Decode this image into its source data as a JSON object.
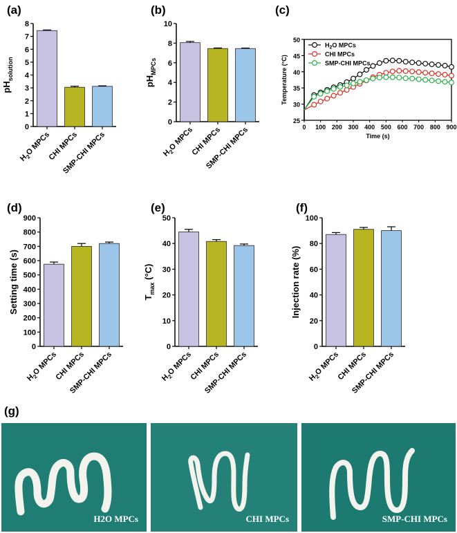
{
  "chart_data": [
    {
      "panel": "(a)",
      "type": "bar",
      "categories": [
        "H2O MPCs",
        "CHI MPCs",
        "SMP-CHI MPCs"
      ],
      "values": [
        7.45,
        3.05,
        3.12
      ],
      "errors": [
        0.05,
        0.08,
        0.04
      ],
      "ylabel": "pH",
      "ylabel_sub": "solution",
      "ylim": [
        0,
        8
      ],
      "yticks": [
        0,
        1,
        2,
        3,
        4,
        5,
        6,
        7,
        8
      ],
      "colors": [
        "#c8c2e2",
        "#b7b522",
        "#9cc5ea"
      ]
    },
    {
      "panel": "(b)",
      "type": "bar",
      "categories": [
        "H2O MPCs",
        "CHI MPCs",
        "SMP-CHI MPCs"
      ],
      "values": [
        8.05,
        7.45,
        7.45
      ],
      "errors": [
        0.12,
        0.06,
        0.05
      ],
      "ylabel": "pH",
      "ylabel_sub": "MPCs",
      "ylim": [
        0,
        10
      ],
      "yticks": [
        0,
        2,
        4,
        6,
        8,
        10
      ],
      "colors": [
        "#c8c2e2",
        "#b7b522",
        "#9cc5ea"
      ]
    },
    {
      "panel": "(c)",
      "type": "line",
      "xlabel": "Time (s)",
      "ylabel": "Temperature (°C)",
      "xlim": [
        0,
        900
      ],
      "ylim": [
        25,
        50
      ],
      "xticks": [
        0,
        100,
        200,
        300,
        400,
        500,
        600,
        700,
        800,
        900
      ],
      "yticks": [
        25,
        30,
        35,
        40,
        45,
        50
      ],
      "legend": "top-left",
      "series": [
        {
          "name": "H2O MPCs",
          "color": "#111111",
          "x": [
            0,
            60,
            100,
            140,
            180,
            220,
            260,
            300,
            340,
            380,
            420,
            460,
            500,
            540,
            580,
            620,
            660,
            700,
            740,
            780,
            820,
            860,
            900
          ],
          "y": [
            28.2,
            32.8,
            33.6,
            34.4,
            35.2,
            35.9,
            36.8,
            37.9,
            39.2,
            40.6,
            41.8,
            42.7,
            43.4,
            43.5,
            43.4,
            43.1,
            42.9,
            42.7,
            42.5,
            42.3,
            42.1,
            41.9,
            41.5
          ]
        },
        {
          "name": "CHI MPCs",
          "color": "#d93025",
          "x": [
            0,
            60,
            100,
            140,
            180,
            220,
            260,
            300,
            340,
            380,
            420,
            460,
            500,
            540,
            580,
            620,
            660,
            700,
            740,
            780,
            820,
            860,
            900
          ],
          "y": [
            28.2,
            29.8,
            30.8,
            31.7,
            32.6,
            33.5,
            34.4,
            35.3,
            36.3,
            37.3,
            38.3,
            39.1,
            39.7,
            40.1,
            40.3,
            40.2,
            40.1,
            39.9,
            39.7,
            39.5,
            39.3,
            39.1,
            38.8
          ]
        },
        {
          "name": "SMP-CHI MPCs",
          "color": "#2bb34a",
          "x": [
            0,
            60,
            100,
            140,
            180,
            220,
            260,
            300,
            340,
            380,
            420,
            460,
            500,
            540,
            580,
            620,
            660,
            700,
            740,
            780,
            820,
            860,
            900
          ],
          "y": [
            28.2,
            32.3,
            33.2,
            34.0,
            34.7,
            35.3,
            35.8,
            36.4,
            36.9,
            37.4,
            37.9,
            38.2,
            38.3,
            38.3,
            38.2,
            38.0,
            37.9,
            37.7,
            37.5,
            37.3,
            37.1,
            36.9,
            36.7
          ]
        }
      ]
    },
    {
      "panel": "(d)",
      "type": "bar",
      "categories": [
        "H2O MPCs",
        "CHI MPCs",
        "SMP-CHI MPCs"
      ],
      "values": [
        575,
        700,
        720
      ],
      "errors": [
        15,
        20,
        10
      ],
      "ylabel": "Setting time (s)",
      "ylim": [
        0,
        900
      ],
      "yticks": [
        0,
        100,
        200,
        300,
        400,
        500,
        600,
        700,
        800,
        900
      ],
      "colors": [
        "#c8c2e2",
        "#b7b522",
        "#9cc5ea"
      ]
    },
    {
      "panel": "(e)",
      "type": "bar",
      "categories": [
        "H2O MPCs",
        "CHI MPCs",
        "SMP-CHI MPCs"
      ],
      "values": [
        44.5,
        40.8,
        39.2
      ],
      "errors": [
        1.0,
        0.7,
        0.6
      ],
      "ylabel": "T",
      "ylabel_sub": "max",
      "ylabel_suffix": " (°C)",
      "ylim": [
        0,
        50
      ],
      "yticks": [
        0,
        10,
        20,
        30,
        40,
        50
      ],
      "colors": [
        "#c8c2e2",
        "#b7b522",
        "#9cc5ea"
      ]
    },
    {
      "panel": "(f)",
      "type": "bar",
      "categories": [
        "H2O MPCs",
        "CHI MPCs",
        "SMP-CHI MPCs"
      ],
      "values": [
        87,
        91,
        90
      ],
      "errors": [
        1.5,
        1.5,
        3.0
      ],
      "ylabel": "Injection rate (%)",
      "ylim": [
        0,
        100
      ],
      "yticks": [
        0,
        20,
        40,
        60,
        80,
        100
      ],
      "colors": [
        "#c8c2e2",
        "#b7b522",
        "#9cc5ea"
      ]
    }
  ],
  "panel_g": {
    "label": "(g)",
    "photos": [
      {
        "caption": "H2O MPCs",
        "bg": "#1f7d74"
      },
      {
        "caption": "CHI MPCs",
        "bg": "#248178"
      },
      {
        "caption": "SMP-CHI MPCs",
        "bg": "#1d7a70"
      }
    ]
  }
}
